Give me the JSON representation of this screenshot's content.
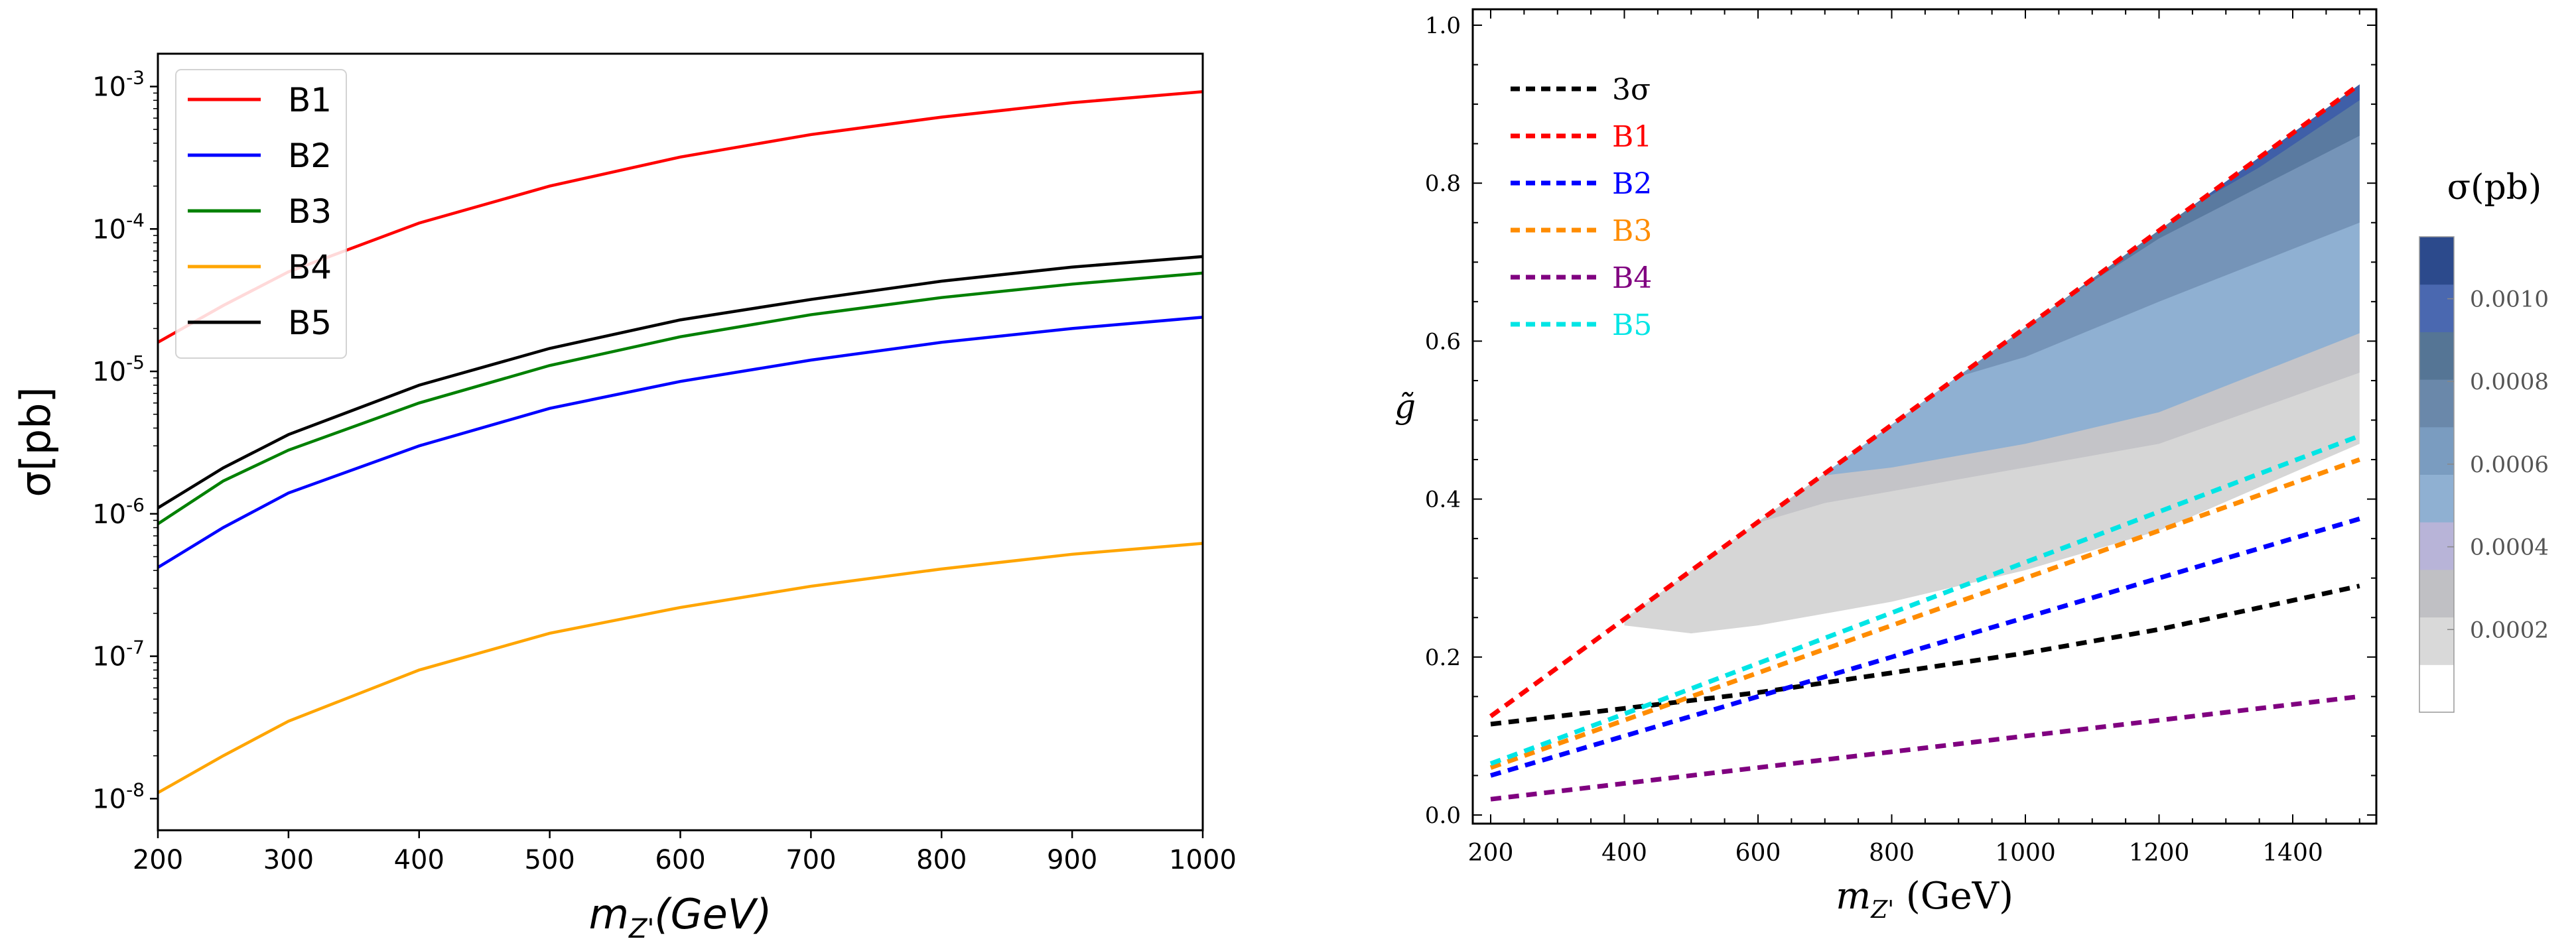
{
  "chart_data": [
    {
      "type": "line",
      "title": "",
      "xlabel": "m_Z'(GeV)",
      "xlabel_main": "m",
      "xlabel_sub": "Z'",
      "xlabel_rest": "(GeV)",
      "ylabel": "σ[pb]",
      "yscale": "log",
      "xlim": [
        200,
        1000
      ],
      "ylim": [
        6e-09,
        0.0017
      ],
      "x_ticks": [
        "200",
        "300",
        "400",
        "500",
        "600",
        "700",
        "800",
        "900",
        "1000"
      ],
      "y_ticks": [
        {
          "exp": "-8",
          "value": 1e-08
        },
        {
          "exp": "-7",
          "value": 1e-07
        },
        {
          "exp": "-6",
          "value": 1e-06
        },
        {
          "exp": "-5",
          "value": 1e-05
        },
        {
          "exp": "-4",
          "value": 0.0001
        },
        {
          "exp": "-3",
          "value": 0.001
        }
      ],
      "legend_position": "top-left",
      "x": [
        200,
        250,
        300,
        400,
        500,
        600,
        700,
        800,
        900,
        1000
      ],
      "series": [
        {
          "name": "B1",
          "color": "#ff0000",
          "values": [
            1.6e-05,
            2.9e-05,
            5e-05,
            0.00011,
            0.0002,
            0.00032,
            0.00046,
            0.00061,
            0.00077,
            0.00092
          ]
        },
        {
          "name": "B2",
          "color": "#0000ff",
          "values": [
            4.2e-07,
            8e-07,
            1.4e-06,
            3e-06,
            5.5e-06,
            8.5e-06,
            1.2e-05,
            1.6e-05,
            2e-05,
            2.4e-05
          ]
        },
        {
          "name": "B3",
          "color": "#008000",
          "values": [
            8.5e-07,
            1.7e-06,
            2.8e-06,
            6e-06,
            1.1e-05,
            1.75e-05,
            2.5e-05,
            3.3e-05,
            4.1e-05,
            4.9e-05
          ]
        },
        {
          "name": "B4",
          "color": "#ffa500",
          "values": [
            1.1e-08,
            2e-08,
            3.5e-08,
            8e-08,
            1.45e-07,
            2.2e-07,
            3.1e-07,
            4.1e-07,
            5.2e-07,
            6.2e-07
          ]
        },
        {
          "name": "B5",
          "color": "#000000",
          "values": [
            1.1e-06,
            2.1e-06,
            3.6e-06,
            8e-06,
            1.45e-05,
            2.3e-05,
            3.2e-05,
            4.3e-05,
            5.4e-05,
            6.4e-05
          ]
        }
      ]
    },
    {
      "type": "line",
      "title": "",
      "xlabel": "m_Z' (GeV)",
      "xlabel_main": "m",
      "xlabel_sub": "Z'",
      "xlabel_rest": " (GeV)",
      "ylabel": "g̃",
      "xlim": [
        185,
        1510
      ],
      "ylim": [
        -0.01,
        1.02
      ],
      "x_ticks": [
        "200",
        "400",
        "600",
        "800",
        "1000",
        "1200",
        "1400"
      ],
      "y_ticks": [
        "0.0",
        "0.2",
        "0.4",
        "0.6",
        "0.8",
        "1.0"
      ],
      "legend_position": "top-left",
      "line_style": "dashed",
      "x": [
        200,
        400,
        600,
        800,
        1000,
        1200,
        1500
      ],
      "series": [
        {
          "name": "3σ",
          "color": "#000000",
          "values": [
            0.115,
            0.135,
            0.155,
            0.18,
            0.205,
            0.235,
            0.29
          ]
        },
        {
          "name": "B1",
          "color": "#ff0000",
          "values": [
            0.125,
            0.248,
            0.371,
            0.494,
            0.617,
            0.74,
            0.925
          ]
        },
        {
          "name": "B2",
          "color": "#0000ff",
          "values": [
            0.05,
            0.1,
            0.15,
            0.2,
            0.25,
            0.3,
            0.375
          ]
        },
        {
          "name": "B3",
          "color": "#ff8c00",
          "values": [
            0.06,
            0.12,
            0.18,
            0.24,
            0.3,
            0.36,
            0.45
          ]
        },
        {
          "name": "B4",
          "color": "#800080",
          "values": [
            0.02,
            0.04,
            0.06,
            0.08,
            0.1,
            0.12,
            0.15
          ]
        },
        {
          "name": "B5",
          "color": "#00e5e5",
          "values": [
            0.065,
            0.128,
            0.192,
            0.256,
            0.32,
            0.384,
            0.48
          ]
        }
      ],
      "contour": {
        "label": "σ(pb)",
        "colorbar_ticks": [
          "0.0002",
          "0.0004",
          "0.0006",
          "0.0008",
          "0.0010"
        ],
        "colorbar_range": [
          0,
          0.00115
        ],
        "levels": [
          {
            "min": 0.0001,
            "color": "#d6d6d6",
            "x": [
              400,
              500,
              600,
              800,
              1000,
              1200,
              1500
            ],
            "g": [
              0.24,
              0.23,
              0.24,
              0.27,
              0.31,
              0.36,
              0.47
            ]
          },
          {
            "min": 0.0003,
            "color": "#c4c4c8",
            "x": [
              600,
              700,
              800,
              1000,
              1200,
              1500
            ],
            "g": [
              0.37,
              0.395,
              0.41,
              0.44,
              0.47,
              0.56
            ]
          },
          {
            "min": 0.0004,
            "color": "#8fb0d2",
            "x": [
              700,
              800,
              1000,
              1200,
              1500
            ],
            "g": [
              0.43,
              0.44,
              0.47,
              0.51,
              0.61
            ]
          },
          {
            "min": 0.0006,
            "color": "#7594b8",
            "x": [
              900,
              1000,
              1200,
              1500
            ],
            "g": [
              0.555,
              0.58,
              0.65,
              0.75
            ]
          },
          {
            "min": 0.0008,
            "color": "#5a7aa0",
            "x": [
              1050,
              1200,
              1500
            ],
            "g": [
              0.675,
              0.73,
              0.86
            ]
          },
          {
            "min": 0.001,
            "color": "#3f5fa8",
            "x": [
              1250,
              1350,
              1500
            ],
            "g": [
              0.78,
              0.82,
              0.905
            ]
          }
        ],
        "colorbar_colors": [
          "#ffffff",
          "#d9d9d9",
          "#c0c0c4",
          "#b8b4d8",
          "#8fb0d2",
          "#7a9cc0",
          "#6a88aa",
          "#557595",
          "#4a68b0",
          "#2c4a8c"
        ]
      }
    }
  ]
}
